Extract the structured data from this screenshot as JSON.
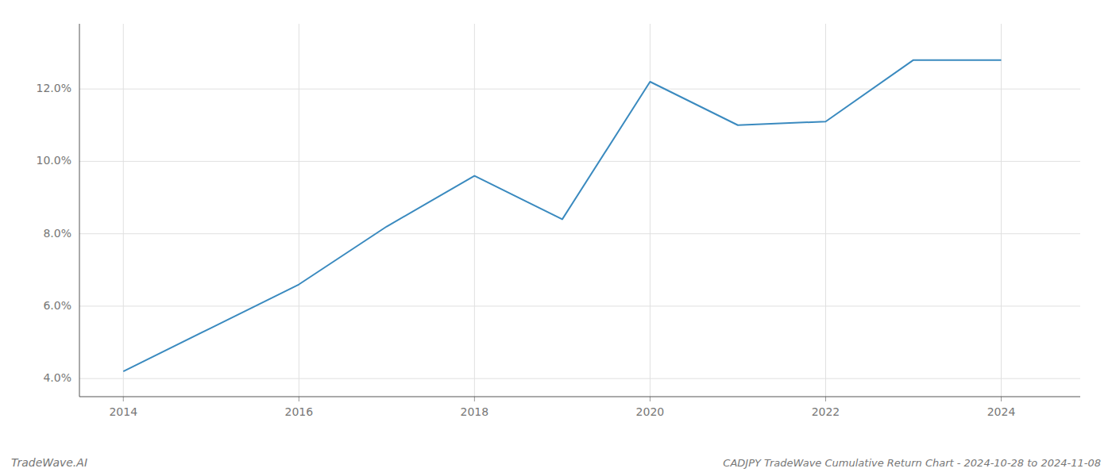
{
  "chart_data": {
    "type": "line",
    "title": "CADJPY TradeWave Cumulative Return Chart - 2024-10-28 to 2024-11-08",
    "annotations": [
      "TradeWave.AI"
    ],
    "x": [
      2014,
      2015,
      2016,
      2017,
      2018,
      2019,
      2020,
      2021,
      2022,
      2023,
      2024
    ],
    "values": [
      0.042,
      0.054,
      0.066,
      0.082,
      0.096,
      0.084,
      0.122,
      0.11,
      0.111,
      0.128,
      0.128
    ],
    "color": "#3a8abf",
    "xlim": [
      2013.5,
      2024.9
    ],
    "ylim": [
      0.035,
      0.138
    ],
    "xticks": [
      2014,
      2016,
      2018,
      2020,
      2022,
      2024
    ],
    "yticks": [
      {
        "value": 0.04,
        "label": "4.0%"
      },
      {
        "value": 0.06,
        "label": "6.0%"
      },
      {
        "value": 0.08,
        "label": "8.0%"
      },
      {
        "value": 0.1,
        "label": "10.0%"
      },
      {
        "value": 0.12,
        "label": "12.0%"
      }
    ],
    "grid": true
  }
}
